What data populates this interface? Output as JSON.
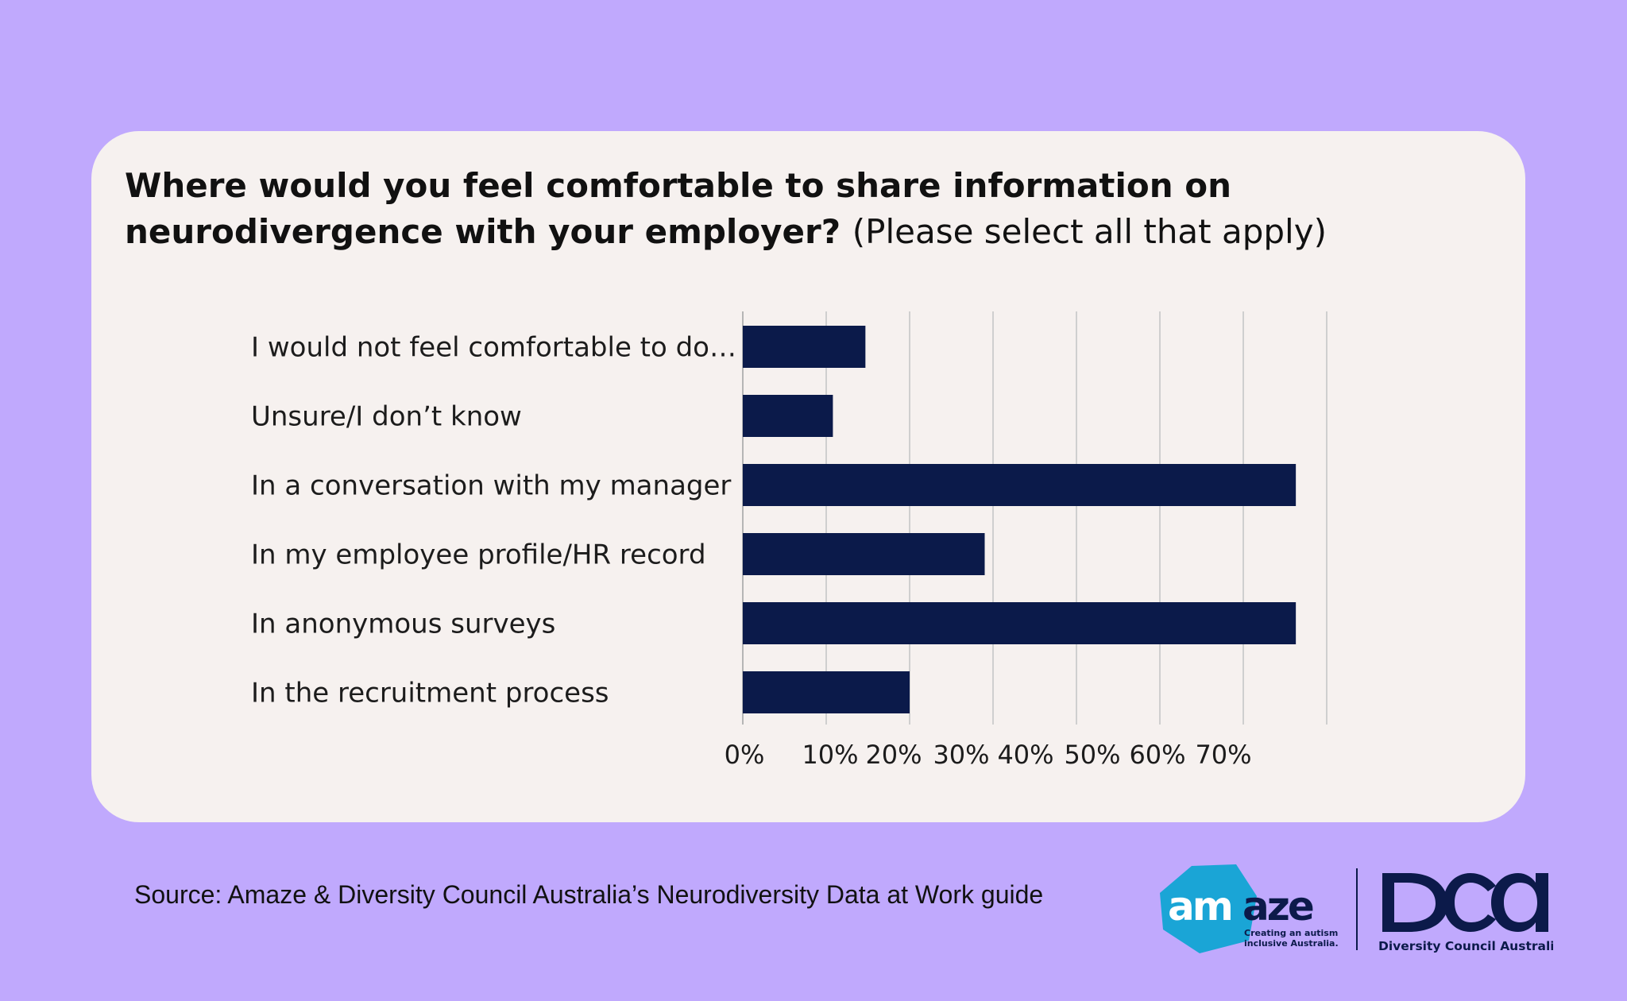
{
  "title": {
    "bold": "Where would you feel comfortable to share information on neurodivergence with your employer?",
    "normal": "(Please select all that apply)"
  },
  "chart_data": {
    "type": "bar",
    "orientation": "horizontal",
    "categories": [
      "I would not feel comfortable to do…",
      "Unsure/I don’t know",
      "In a conversation with my manager",
      "In my employee profile/HR record",
      "In anonymous surveys",
      "In the recruitment process"
    ],
    "values": [
      14.7,
      10.8,
      66.3,
      29,
      66.3,
      20
    ],
    "xlim": [
      0,
      70
    ],
    "x_ticks": [
      "0%",
      "10%",
      "20%",
      "30%",
      "40%",
      "50%",
      "60%",
      "70%"
    ],
    "grid": true,
    "bar_color": "#0b1a4a"
  },
  "footer": {
    "source": "Source: Amaze & Diversity Council Australia’s Neurodiversity Data at Work guide"
  },
  "logos": {
    "amaze": {
      "name": "amaze",
      "tagline_1": "Creating an autism",
      "tagline_2": "inclusive Australia.",
      "color": "#1aa5d6"
    },
    "dca": {
      "name": "DCA",
      "subtitle": "Diversity Council Australia",
      "color": "#0c1a4a"
    }
  }
}
